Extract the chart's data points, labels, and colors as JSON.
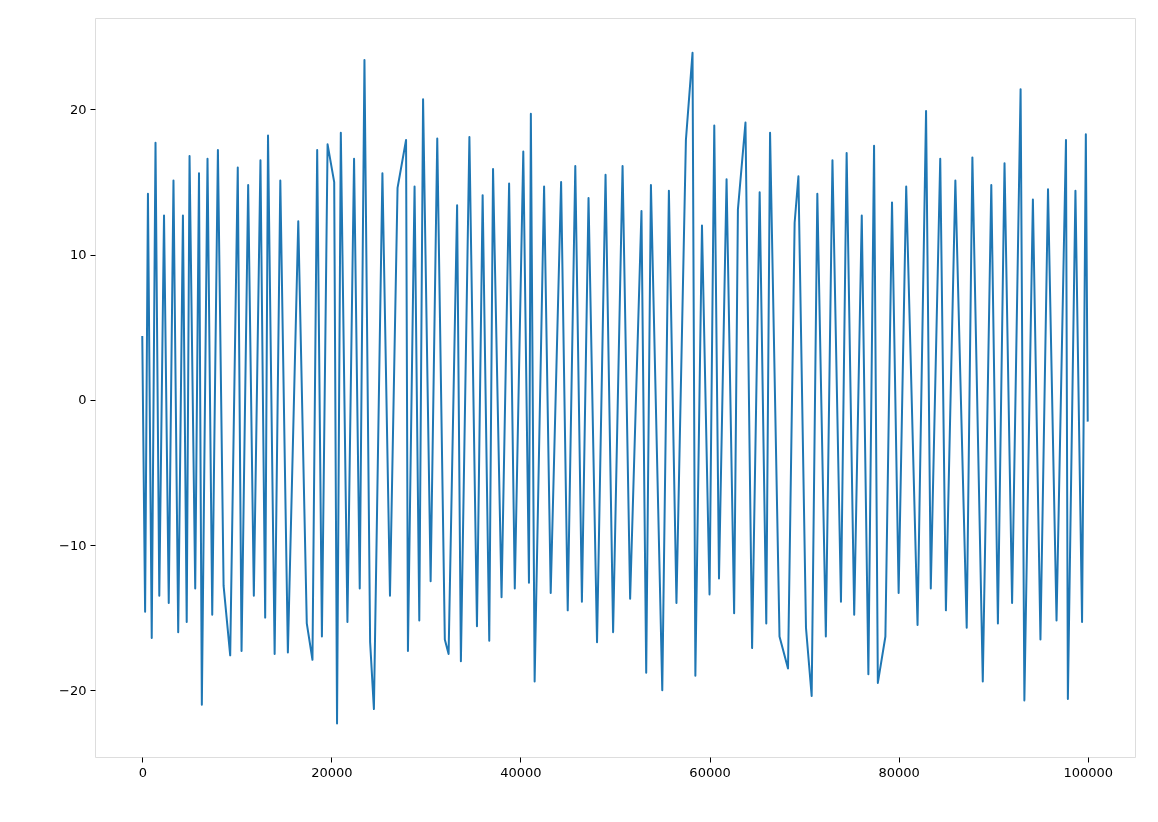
{
  "chart_data": {
    "type": "line",
    "x": [
      0,
      300,
      600,
      1000,
      1400,
      1800,
      2300,
      2800,
      3300,
      3800,
      4300,
      4700,
      5000,
      5600,
      6000,
      6300,
      6900,
      7400,
      8000,
      8600,
      9300,
      10100,
      10500,
      11200,
      11800,
      12500,
      13000,
      13300,
      14000,
      14600,
      15400,
      16500,
      17400,
      18000,
      18500,
      19000,
      19600,
      20300,
      20600,
      21000,
      21700,
      22400,
      23000,
      23500,
      24100,
      24500,
      25400,
      26200,
      27000,
      27900,
      28100,
      28800,
      29300,
      29700,
      30500,
      31200,
      32000,
      32400,
      33300,
      33700,
      34600,
      35400,
      36000,
      36700,
      37100,
      38000,
      38800,
      39400,
      40300,
      40900,
      41100,
      41500,
      42500,
      43200,
      44300,
      45000,
      45800,
      46500,
      47200,
      48100,
      49000,
      49800,
      50800,
      51600,
      52800,
      53300,
      53800,
      55000,
      55700,
      56500,
      57500,
      58200,
      58500,
      59200,
      60000,
      60500,
      61000,
      61800,
      62600,
      63000,
      63800,
      64500,
      65300,
      66000,
      66400,
      67400,
      68300,
      69000,
      69400,
      70200,
      70800,
      71400,
      72300,
      73000,
      73900,
      74500,
      75300,
      76100,
      76800,
      77400,
      77800,
      78600,
      79300,
      80000,
      80800,
      82000,
      82900,
      83400,
      84400,
      85000,
      86000,
      87200,
      87800,
      88900,
      89800,
      90500,
      91200,
      92000,
      92900,
      93300,
      94200,
      95000,
      95800,
      96700,
      97700,
      97900,
      98700,
      99400,
      99800,
      100000
    ],
    "series": [
      {
        "color": "#1f77b4",
        "values": [
          4.4,
          -14.6,
          14.2,
          -16.4,
          17.7,
          -13.5,
          12.7,
          -14.0,
          15.1,
          -16.0,
          12.7,
          -15.3,
          16.8,
          -13.0,
          15.6,
          -21.0,
          16.6,
          -14.8,
          17.2,
          -12.8,
          -17.6,
          16.0,
          -17.3,
          14.8,
          -13.5,
          16.5,
          -15.0,
          18.2,
          -17.5,
          15.1,
          -17.4,
          12.3,
          -15.4,
          -17.9,
          17.2,
          -16.3,
          17.6,
          15.0,
          -22.3,
          18.4,
          -15.3,
          16.6,
          -13.0,
          23.4,
          -16.7,
          -21.3,
          15.6,
          -13.5,
          14.6,
          17.9,
          -17.3,
          14.7,
          -15.2,
          20.7,
          -12.5,
          18.0,
          -16.5,
          -17.5,
          13.4,
          -18.0,
          18.1,
          -15.6,
          14.1,
          -16.6,
          15.9,
          -13.6,
          14.9,
          -13.0,
          17.1,
          -12.6,
          19.7,
          -19.4,
          14.7,
          -13.3,
          15.0,
          -14.5,
          16.1,
          -13.9,
          13.9,
          -16.7,
          15.5,
          -16.0,
          16.1,
          -13.7,
          13.0,
          -18.8,
          14.8,
          -20.0,
          14.4,
          -14.0,
          17.9,
          23.9,
          -19.0,
          12.0,
          -13.4,
          18.9,
          -12.3,
          15.2,
          -14.7,
          13.1,
          19.1,
          -17.1,
          14.3,
          -15.4,
          18.4,
          -16.3,
          -18.5,
          12.2,
          15.4,
          -15.7,
          -20.4,
          14.2,
          -16.3,
          16.5,
          -13.9,
          17.0,
          -14.8,
          12.7,
          -18.9,
          17.5,
          -19.5,
          -16.3,
          13.6,
          -13.3,
          14.7,
          -15.5,
          19.9,
          -13.0,
          16.6,
          -14.5,
          15.1,
          -15.7,
          16.7,
          -19.4,
          14.8,
          -15.4,
          16.3,
          -14.0,
          21.4,
          -20.7,
          13.8,
          -16.5,
          14.5,
          -15.2,
          17.9,
          -20.6,
          14.4,
          -15.3,
          18.3,
          -1.5
        ]
      }
    ],
    "xlim": [
      -5000,
      105000
    ],
    "ylim": [
      -24.6,
      26.3
    ],
    "xticks": [
      0,
      20000,
      40000,
      60000,
      80000,
      100000
    ],
    "yticks": [
      {
        "value": -20,
        "label": "−20"
      },
      {
        "value": -10,
        "label": "−10"
      },
      0,
      10,
      20
    ],
    "line_style": "solid",
    "grid": false
  }
}
